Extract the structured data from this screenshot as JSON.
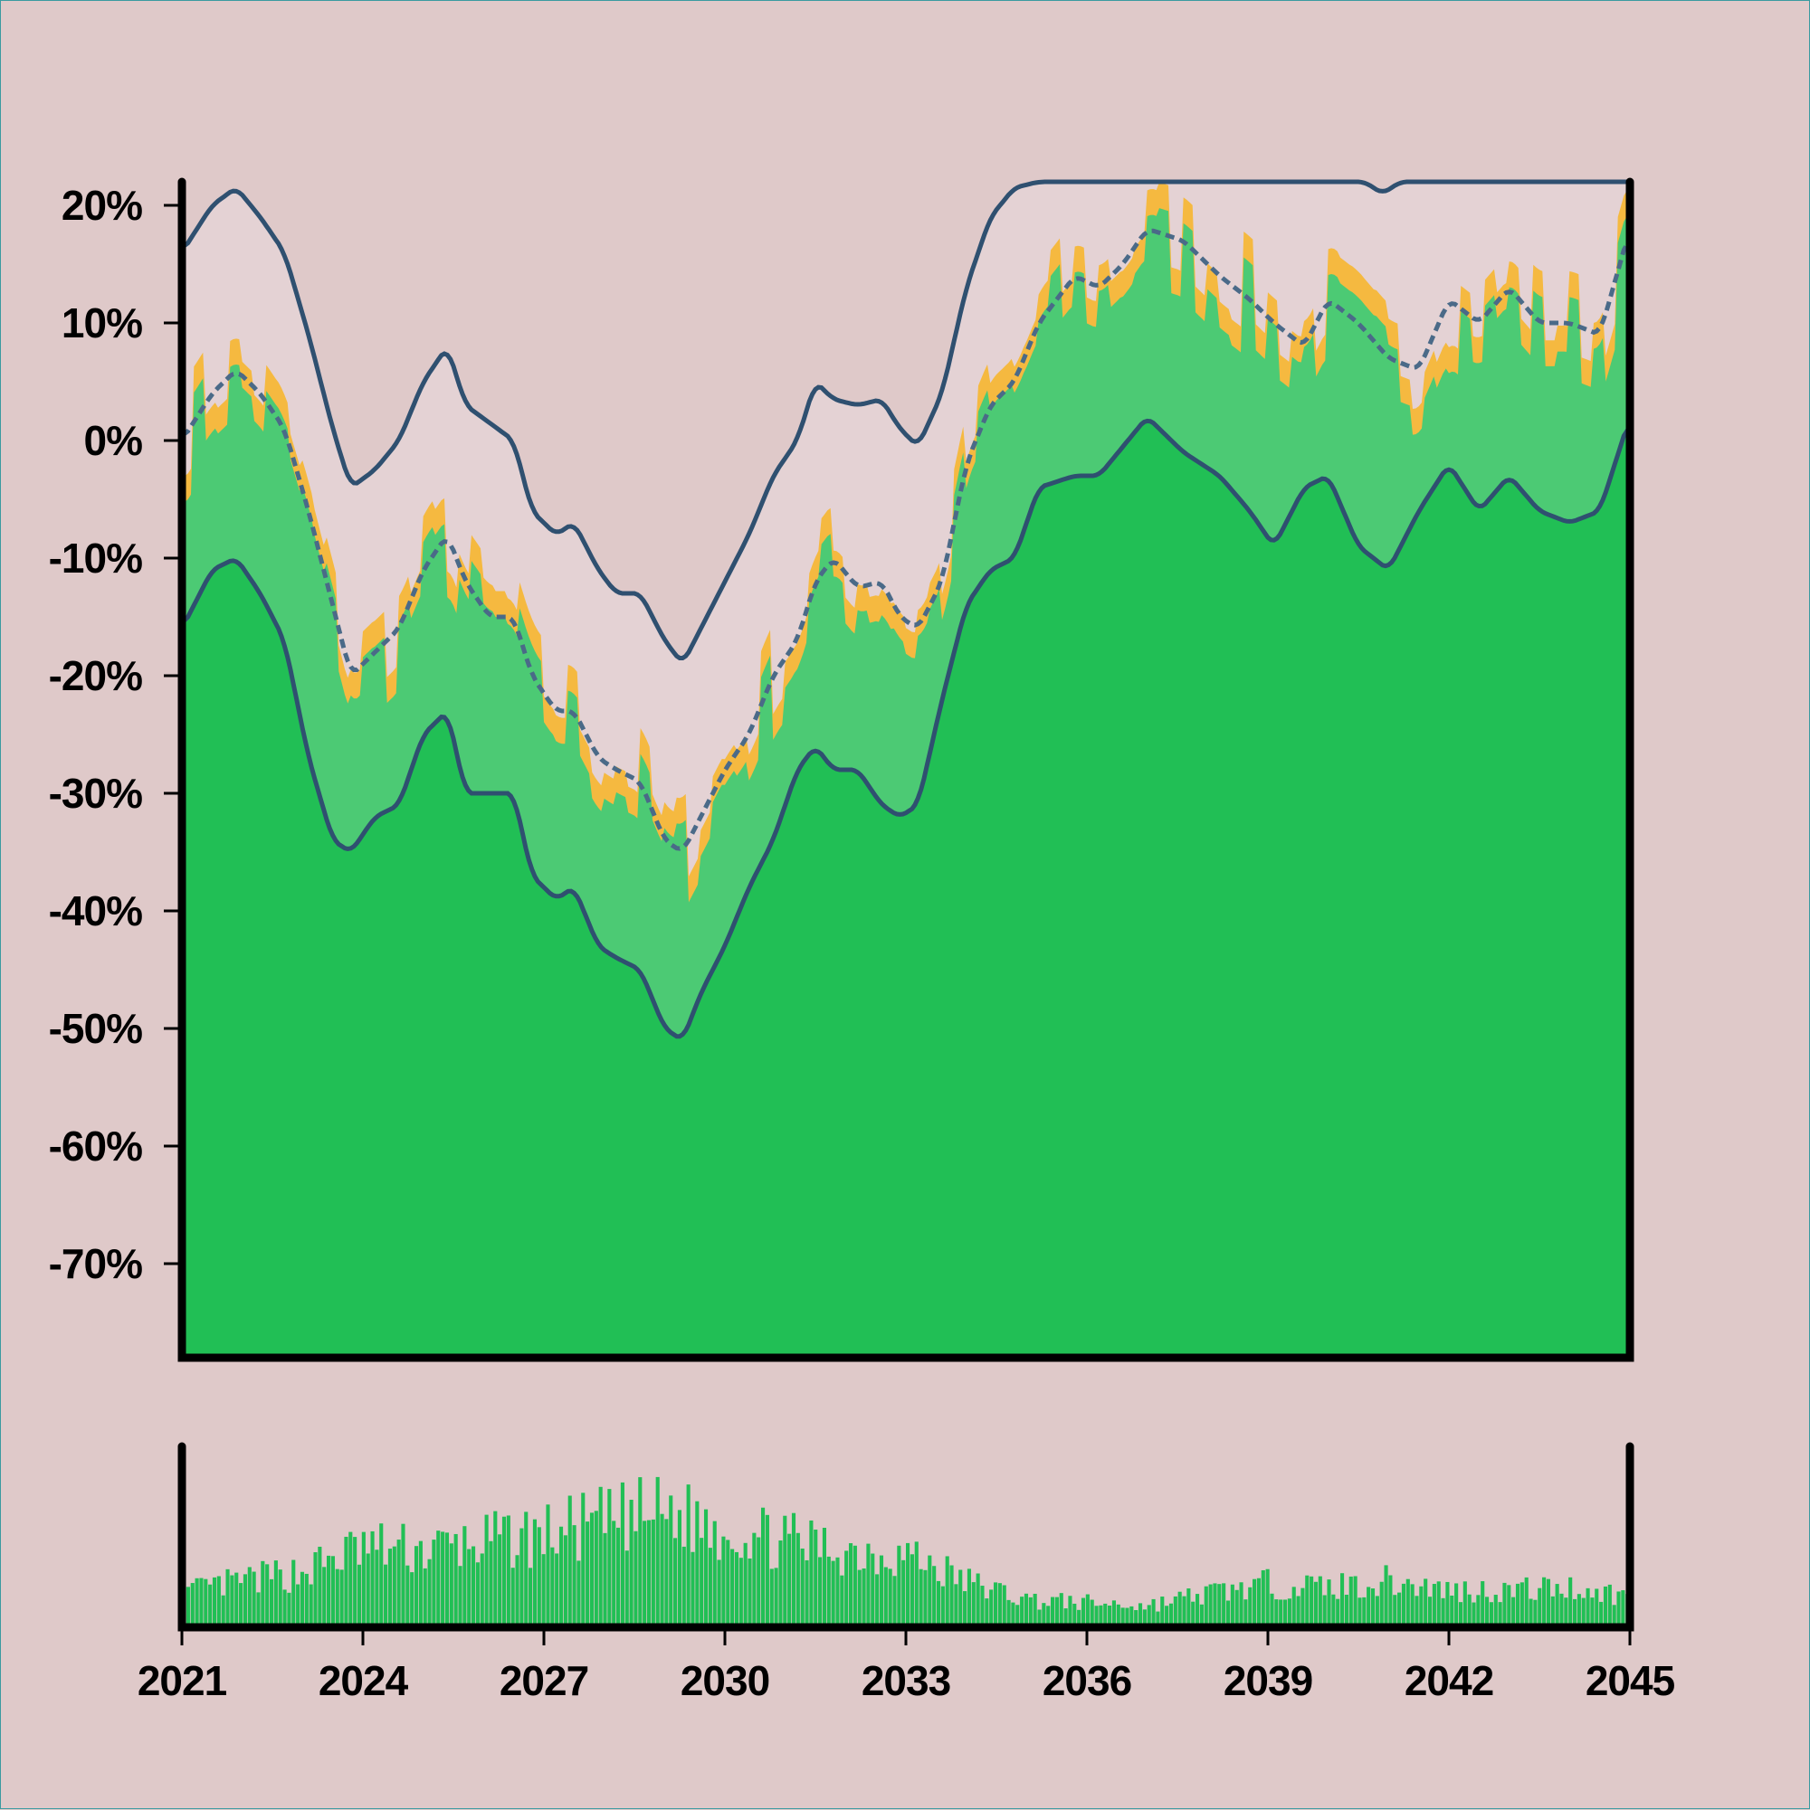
{
  "chart_data": [
    {
      "type": "area",
      "title": "",
      "xlabel": "",
      "ylabel": "",
      "x_range": [
        2021,
        2045
      ],
      "ylim": [
        -78,
        22
      ],
      "y_ticks": [
        20,
        10,
        0,
        -10,
        -20,
        -30,
        -40,
        -50,
        -60,
        -70
      ],
      "y_tick_labels": [
        "20%",
        "10%",
        "0%",
        "-10%",
        "-20%",
        "-30%",
        "-40%",
        "-50%",
        "-60%",
        "-70%"
      ],
      "grid": false,
      "legend": "none",
      "series": [
        {
          "role": "upper-band-line",
          "color": "#2f5070",
          "x": [
            2021,
            2021.5,
            2021.9,
            2022.3,
            2022.7,
            2023.1,
            2023.5,
            2023.8,
            2024.2,
            2024.6,
            2025.0,
            2025.4,
            2025.7,
            2026.1,
            2026.5,
            2026.8,
            2027.2,
            2027.5,
            2027.9,
            2028.2,
            2028.6,
            2029.0,
            2029.3,
            2029.6,
            2030.0,
            2030.4,
            2030.8,
            2031.2,
            2031.5,
            2031.8,
            2032.2,
            2032.6,
            2032.9,
            2033.2,
            2033.6,
            2034.0,
            2034.4,
            2034.8,
            2035.2,
            2036.0,
            2037.0,
            2038.0,
            2039.0,
            2040.0,
            2040.6,
            2040.9,
            2041.2,
            2042.0,
            2043.0,
            2044.0,
            2045.0
          ],
          "y": [
            16,
            20,
            21.5,
            19,
            16,
            9,
            1,
            -4,
            -2.5,
            0,
            5,
            8,
            3,
            1.5,
            0,
            -6,
            -8,
            -7,
            -11,
            -13,
            -13,
            -17,
            -19,
            -16,
            -12,
            -8,
            -3,
            0,
            5,
            3.5,
            3,
            3.5,
            1,
            -0.5,
            4,
            13,
            19,
            21.5,
            22,
            22,
            22,
            22,
            22,
            22,
            22,
            21,
            22,
            22,
            22,
            22,
            22
          ]
        },
        {
          "role": "mid-dashed-line",
          "color": "#4a6a88",
          "x": [
            2021,
            2021.5,
            2021.9,
            2022.3,
            2022.7,
            2023.1,
            2023.5,
            2023.8,
            2024.2,
            2024.6,
            2025.0,
            2025.4,
            2025.7,
            2026.1,
            2026.5,
            2026.8,
            2027.2,
            2027.5,
            2027.9,
            2028.2,
            2028.6,
            2029.0,
            2029.3,
            2029.6,
            2030.0,
            2030.4,
            2030.8,
            2031.2,
            2031.5,
            2031.8,
            2032.2,
            2032.6,
            2032.9,
            2033.2,
            2033.6,
            2034.0,
            2034.4,
            2034.8,
            2035.2,
            2035.8,
            2036.2,
            2036.6,
            2037.0,
            2037.6,
            2038.2,
            2038.7,
            2039.1,
            2039.6,
            2040.0,
            2040.5,
            2041.0,
            2041.5,
            2042.0,
            2042.5,
            2043.0,
            2043.5,
            2044.0,
            2044.5,
            2045.0
          ],
          "y": [
            0,
            4,
            6,
            4,
            1,
            -6,
            -14,
            -20,
            -18,
            -16,
            -11,
            -8,
            -12,
            -15,
            -15,
            -20,
            -23,
            -23,
            -27,
            -28,
            -29,
            -34,
            -35,
            -32,
            -28,
            -25,
            -20,
            -17,
            -12,
            -10,
            -12.5,
            -12,
            -15,
            -16,
            -12,
            -2,
            3,
            5,
            10,
            14,
            13,
            15,
            18,
            17,
            14,
            12,
            10,
            8,
            12,
            10,
            7,
            6,
            12,
            10,
            13,
            10,
            10,
            9,
            18
          ]
        },
        {
          "role": "lower-band-line",
          "color": "#2f5070",
          "x": [
            2021,
            2021.5,
            2021.9,
            2022.3,
            2022.7,
            2023.1,
            2023.5,
            2023.8,
            2024.2,
            2024.6,
            2025.0,
            2025.4,
            2025.7,
            2026.1,
            2026.5,
            2026.8,
            2027.2,
            2027.5,
            2027.9,
            2028.2,
            2028.6,
            2029.0,
            2029.3,
            2029.6,
            2030.0,
            2030.4,
            2030.8,
            2031.2,
            2031.5,
            2031.8,
            2032.2,
            2032.6,
            2032.9,
            2033.2,
            2033.6,
            2034.0,
            2034.4,
            2034.8,
            2035.2,
            2035.8,
            2036.2,
            2036.6,
            2037.0,
            2037.6,
            2038.2,
            2038.7,
            2039.1,
            2039.6,
            2040.0,
            2040.5,
            2041.0,
            2041.5,
            2042.0,
            2042.5,
            2043.0,
            2043.5,
            2044.0,
            2044.5,
            2045.0
          ],
          "y": [
            -16,
            -11,
            -10,
            -13,
            -17,
            -27,
            -34,
            -35,
            -32,
            -31,
            -25,
            -23,
            -30,
            -30,
            -30,
            -37,
            -39,
            -38,
            -43,
            -44,
            -45,
            -50,
            -51,
            -47,
            -43,
            -38,
            -34,
            -28,
            -26,
            -28,
            -28,
            -31,
            -32,
            -31,
            -22,
            -14,
            -11,
            -10,
            -4,
            -3,
            -3,
            -0.5,
            2,
            -1,
            -3,
            -6,
            -9,
            -4,
            -3,
            -9,
            -11,
            -6,
            -2,
            -6,
            -3,
            -6,
            -7,
            -6,
            2
          ]
        }
      ],
      "area_fills": {
        "upper_band_fill": "#e4d2d4",
        "actual_top_fill": "#f5b940",
        "light_green_fill": "#4cca74",
        "dark_green_fill": "#21bf55"
      }
    },
    {
      "type": "bar",
      "title": "",
      "color": "#21bf55",
      "x_range": [
        2021,
        2045
      ],
      "x_ticks": [
        2021,
        2024,
        2027,
        2030,
        2033,
        2036,
        2039,
        2042,
        2045
      ],
      "x_tick_labels": [
        "2021",
        "2024",
        "2027",
        "2030",
        "2033",
        "2036",
        "2039",
        "2042",
        "2045"
      ],
      "envelope_x": [
        2021,
        2022,
        2023,
        2024,
        2025,
        2026,
        2027,
        2028,
        2029,
        2030,
        2031,
        2032,
        2033,
        2034,
        2035,
        2036,
        2037,
        2038,
        2039,
        2040,
        2041,
        2042,
        2043,
        2044,
        2045
      ],
      "envelope_y": [
        0.22,
        0.3,
        0.36,
        0.52,
        0.5,
        0.55,
        0.6,
        0.68,
        0.75,
        0.64,
        0.56,
        0.5,
        0.48,
        0.3,
        0.18,
        0.16,
        0.14,
        0.22,
        0.28,
        0.26,
        0.3,
        0.24,
        0.24,
        0.26,
        0.2
      ]
    }
  ]
}
